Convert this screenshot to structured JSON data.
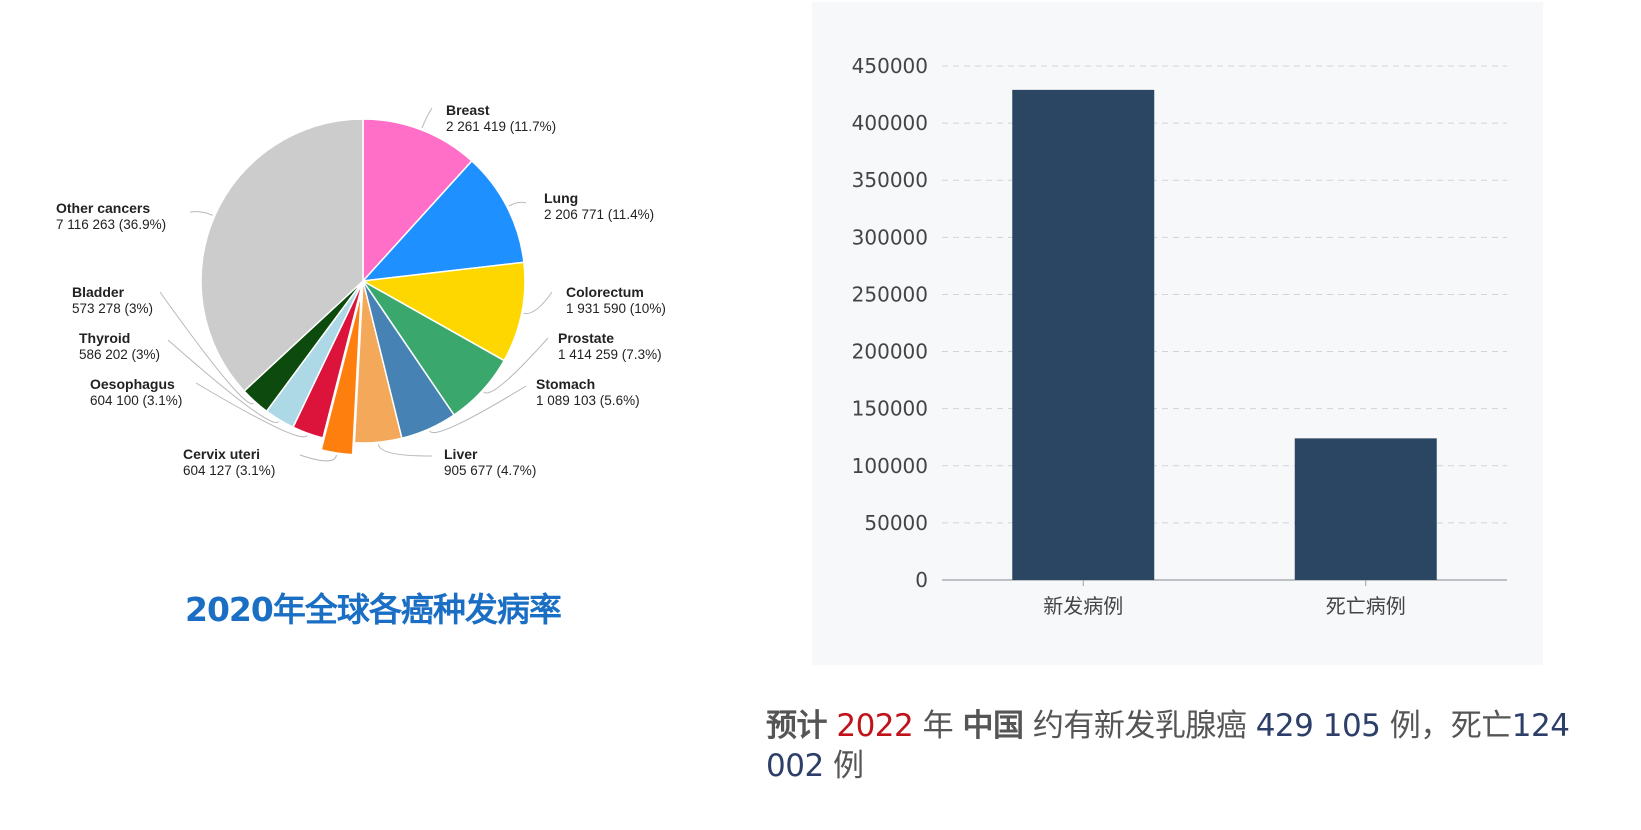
{
  "pie": {
    "title": "2020年全球各癌种发病率"
  },
  "bar": {},
  "caption": {
    "p1": "预计",
    "p2": "2022",
    "p3": "年",
    "p4": "中国",
    "p5": "约有新发乳腺癌",
    "p6": "429 105",
    "p7": "例，死亡",
    "p8": "124 002",
    "p9": "例"
  },
  "colors": {
    "breast": "#ff6ec7",
    "lung": "#1e90ff",
    "colorectum": "#ffd700",
    "prostate": "#3aa86d",
    "stomach": "#4682b4",
    "liver": "#f4a85a",
    "cervix": "#ff7f0e",
    "oesophagus": "#dc143c",
    "thyroid": "#add8e6",
    "bladder": "#0d4a0d",
    "other": "#cccccc",
    "bar": "#2b4662",
    "title_blue": "#1a6fc4",
    "caption_red": "#c0121a",
    "caption_navy": "#2d3e68"
  },
  "chart_data": [
    {
      "type": "pie",
      "title": "2020年全球各癌种发病率",
      "slices": [
        {
          "name": "Breast",
          "value": 2261419,
          "label": "2 261 419 (11.7%)",
          "percent": 11.7,
          "color": "#ff6ec7"
        },
        {
          "name": "Lung",
          "value": 2206771,
          "label": "2 206 771 (11.4%)",
          "percent": 11.4,
          "color": "#1e90ff"
        },
        {
          "name": "Colorectum",
          "value": 1931590,
          "label": "1 931 590 (10%)",
          "percent": 10,
          "color": "#ffd700"
        },
        {
          "name": "Prostate",
          "value": 1414259,
          "label": "1 414 259 (7.3%)",
          "percent": 7.3,
          "color": "#3aa86d"
        },
        {
          "name": "Stomach",
          "value": 1089103,
          "label": "1 089 103 (5.6%)",
          "percent": 5.6,
          "color": "#4682b4"
        },
        {
          "name": "Liver",
          "value": 905677,
          "label": "905 677 (4.7%)",
          "percent": 4.7,
          "color": "#f4a85a"
        },
        {
          "name": "Cervix uteri",
          "value": 604127,
          "label": "604 127 (3.1%)",
          "percent": 3.1,
          "color": "#ff7f0e",
          "exploded": true
        },
        {
          "name": "Oesophagus",
          "value": 604100,
          "label": "604 100 (3.1%)",
          "percent": 3.1,
          "color": "#dc143c"
        },
        {
          "name": "Thyroid",
          "value": 586202,
          "label": "586 202 (3%)",
          "percent": 3,
          "color": "#add8e6"
        },
        {
          "name": "Bladder",
          "value": 573278,
          "label": "573 278 (3%)",
          "percent": 3,
          "color": "#0d4a0d"
        },
        {
          "name": "Other cancers",
          "value": 7116263,
          "label": "7 116 263 (36.9%)",
          "percent": 36.9,
          "color": "#cccccc"
        }
      ]
    },
    {
      "type": "bar",
      "categories": [
        "新发病例",
        "死亡病例"
      ],
      "values": [
        429105,
        124002
      ],
      "ylim": [
        0,
        450000
      ],
      "yticks": [
        0,
        50000,
        100000,
        150000,
        200000,
        250000,
        300000,
        350000,
        400000,
        450000
      ],
      "grid": true,
      "color": "#2b4662"
    }
  ]
}
